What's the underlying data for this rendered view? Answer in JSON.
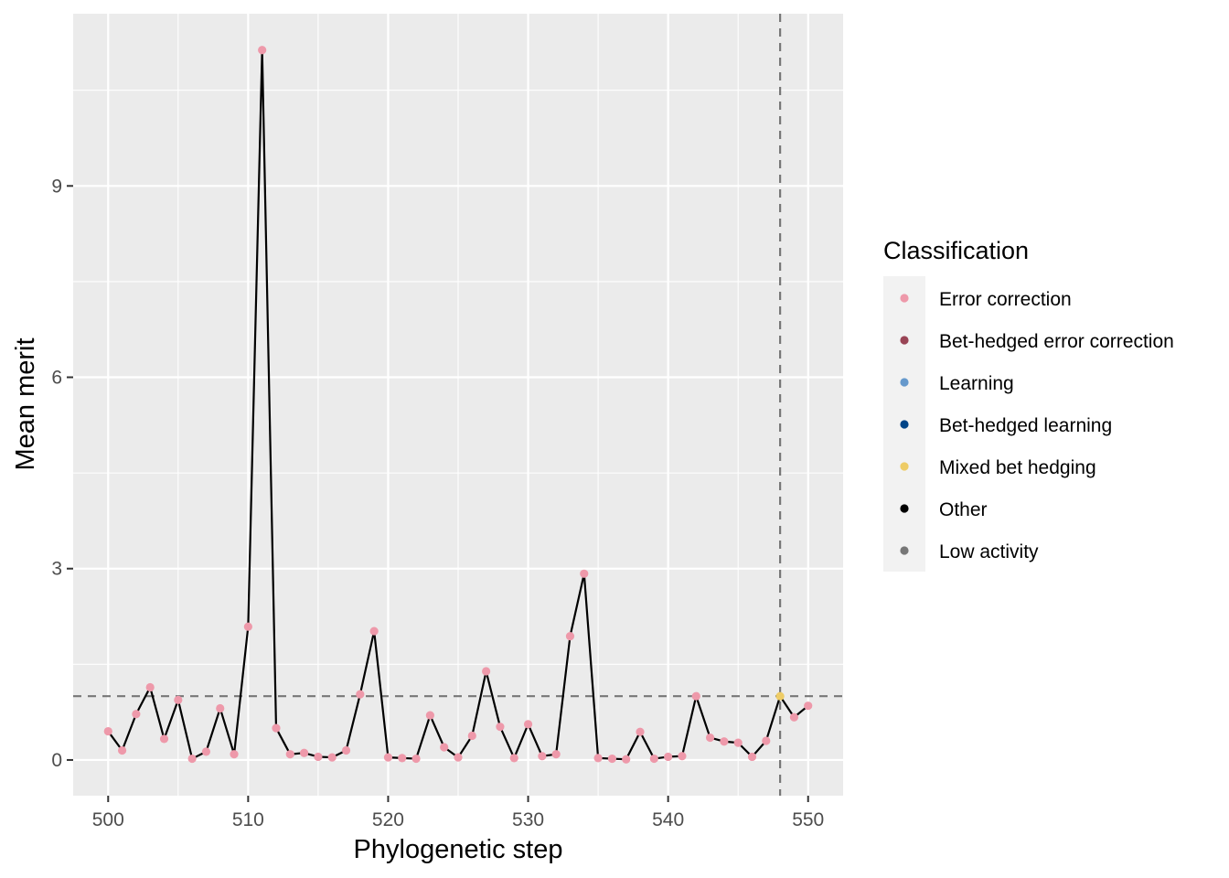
{
  "chart_data": {
    "type": "line",
    "xlabel": "Phylogenetic step",
    "ylabel": "Mean merit",
    "xlim": [
      497.5,
      552.5
    ],
    "ylim": [
      -0.56,
      11.7
    ],
    "x_ticks": [
      500,
      510,
      520,
      530,
      540,
      550
    ],
    "y_ticks": [
      0,
      3,
      6,
      9
    ],
    "grid": true,
    "reference_lines": {
      "horizontal_y": 1.0,
      "vertical_x": 548
    },
    "legend": {
      "title": "Classification",
      "position": "right",
      "entries": [
        {
          "label": "Error correction",
          "color": "#EE99AA"
        },
        {
          "label": "Bet-hedged error correction",
          "color": "#994455"
        },
        {
          "label": "Learning",
          "color": "#6699CC"
        },
        {
          "label": "Bet-hedged learning",
          "color": "#004488"
        },
        {
          "label": "Mixed bet hedging",
          "color": "#EECC66"
        },
        {
          "label": "Other",
          "color": "#000000"
        },
        {
          "label": "Low activity",
          "color": "#777777"
        }
      ]
    },
    "series": [
      {
        "x": [
          500,
          501,
          502,
          503,
          504,
          505,
          506,
          507,
          508,
          509,
          510,
          511,
          512,
          513,
          514,
          515,
          516,
          517,
          518,
          519,
          520,
          521,
          522,
          523,
          524,
          525,
          526,
          527,
          528,
          529,
          530,
          531,
          532,
          533,
          534,
          535,
          536,
          537,
          538,
          539,
          540,
          541,
          542,
          543,
          544,
          545,
          546,
          547,
          548,
          549,
          550
        ],
        "y": [
          0.45,
          0.15,
          0.72,
          1.14,
          0.33,
          0.94,
          0.02,
          0.13,
          0.81,
          0.09,
          2.09,
          11.13,
          0.5,
          0.09,
          0.11,
          0.05,
          0.04,
          0.15,
          1.03,
          2.02,
          0.04,
          0.03,
          0.02,
          0.7,
          0.2,
          0.04,
          0.38,
          1.39,
          0.52,
          0.03,
          0.56,
          0.06,
          0.09,
          1.94,
          2.92,
          0.03,
          0.02,
          0.01,
          0.44,
          0.02,
          0.05,
          0.06,
          1.0,
          0.35,
          0.29,
          0.27,
          0.05,
          0.3,
          1.0,
          0.67,
          0.85
        ],
        "classes": [
          "Error correction",
          "Error correction",
          "Error correction",
          "Error correction",
          "Error correction",
          "Error correction",
          "Error correction",
          "Error correction",
          "Error correction",
          "Error correction",
          "Error correction",
          "Error correction",
          "Error correction",
          "Error correction",
          "Error correction",
          "Error correction",
          "Error correction",
          "Error correction",
          "Error correction",
          "Error correction",
          "Error correction",
          "Error correction",
          "Error correction",
          "Error correction",
          "Error correction",
          "Error correction",
          "Error correction",
          "Error correction",
          "Error correction",
          "Error correction",
          "Error correction",
          "Error correction",
          "Error correction",
          "Error correction",
          "Error correction",
          "Error correction",
          "Error correction",
          "Error correction",
          "Error correction",
          "Error correction",
          "Error correction",
          "Error correction",
          "Error correction",
          "Error correction",
          "Error correction",
          "Error correction",
          "Error correction",
          "Error correction",
          "Mixed bet hedging",
          "Error correction",
          "Error correction"
        ]
      }
    ]
  }
}
